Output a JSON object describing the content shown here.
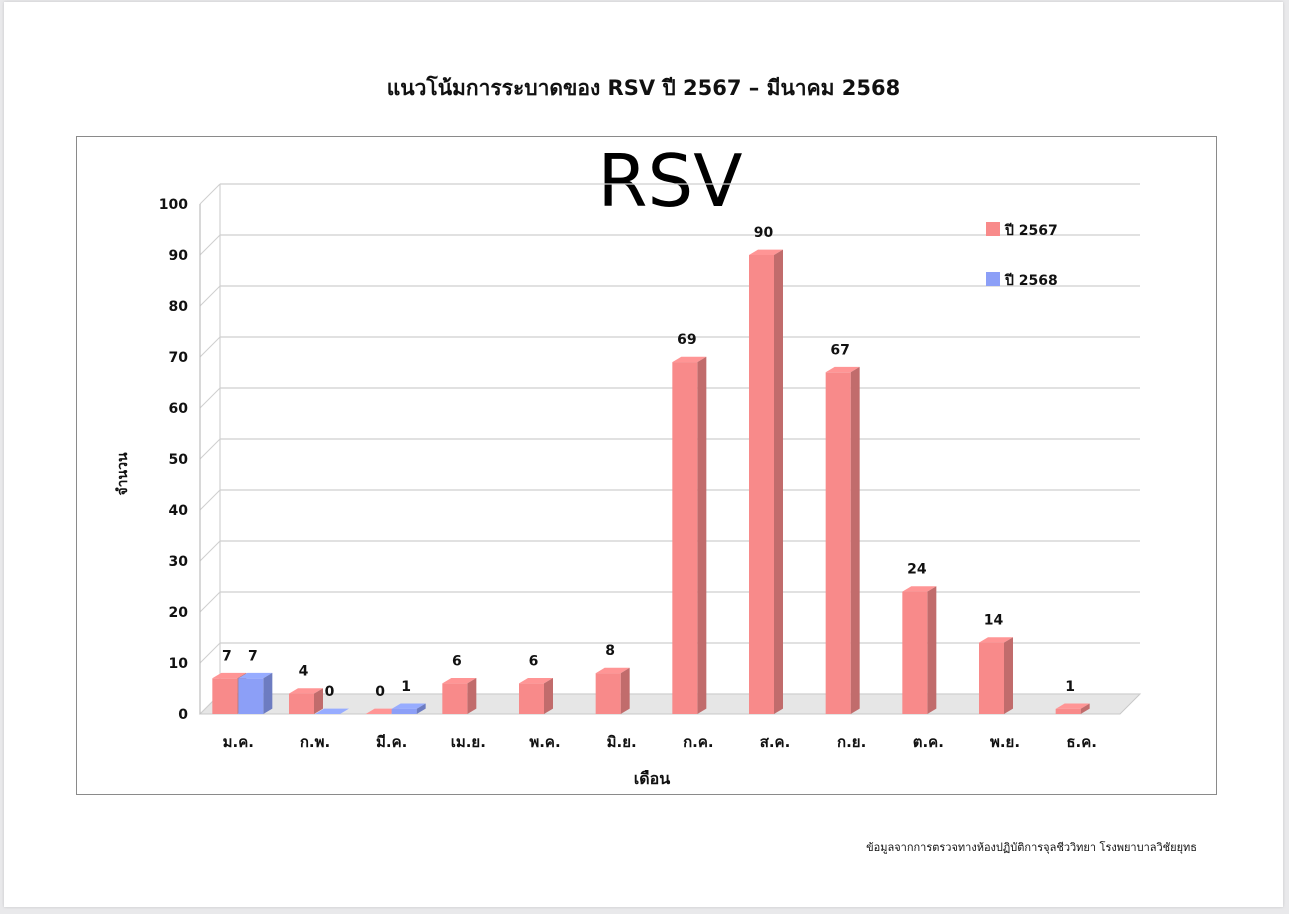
{
  "chart_data": {
    "type": "bar",
    "title": "แนวโน้มการระบาดของ RSV ปี 2567 – มีนาคม 2568",
    "subtitle": "RSV",
    "xlabel": "เดือน",
    "ylabel": "จำนวน",
    "ylim": [
      0,
      100
    ],
    "yticks": [
      "0",
      "10",
      "20",
      "30",
      "40",
      "50",
      "60",
      "70",
      "80",
      "90",
      "100"
    ],
    "categories": [
      "ม.ค.",
      "ก.พ.",
      "มี.ค.",
      "เม.ย.",
      "พ.ค.",
      "มิ.ย.",
      "ก.ค.",
      "ส.ค.",
      "ก.ย.",
      "ต.ค.",
      "พ.ย.",
      "ธ.ค."
    ],
    "series": [
      {
        "name": "ปี 2567",
        "color": "#f88a8a",
        "values": [
          7,
          4,
          0,
          6,
          6,
          8,
          69,
          90,
          67,
          24,
          14,
          1
        ]
      },
      {
        "name": "ปี 2568",
        "color": "#8c9ff7",
        "values": [
          7,
          0,
          1,
          null,
          null,
          null,
          null,
          null,
          null,
          null,
          null,
          null
        ]
      }
    ],
    "grid": true,
    "legend_position": "top-right",
    "source": "ข้อมูลจากการตรวจทางห้องปฏิบัติการจุลชีววิทยา โรงพยาบาลวิชัยยุทธ"
  }
}
